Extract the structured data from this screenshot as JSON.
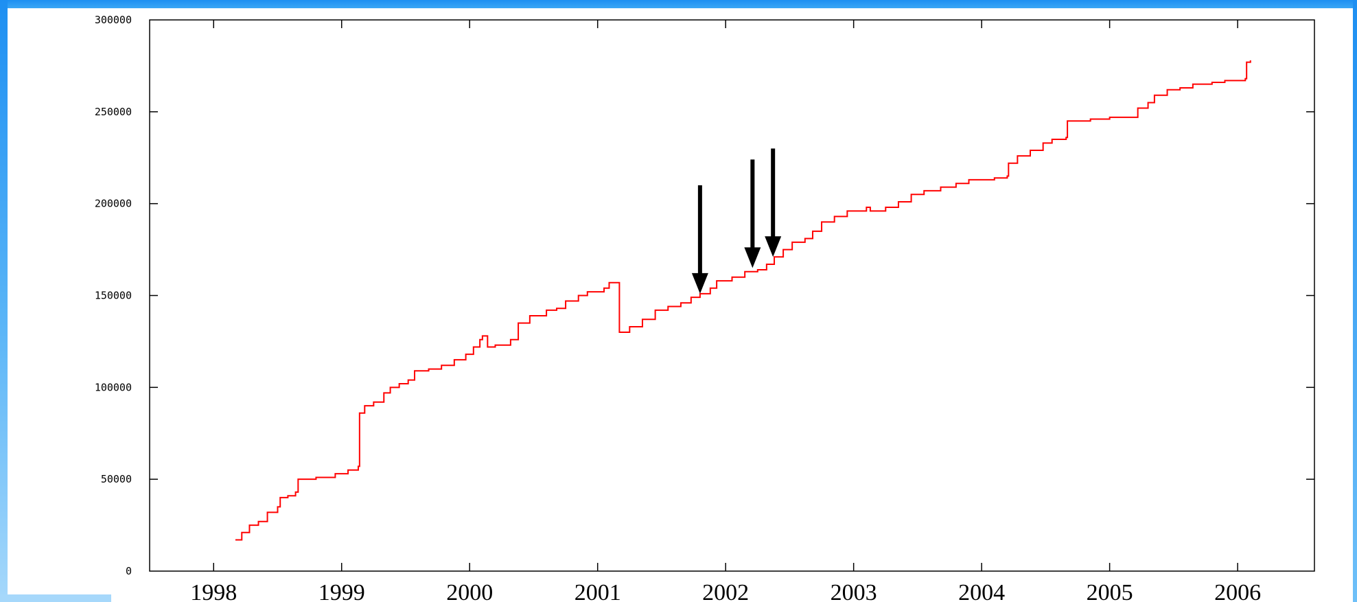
{
  "chart_data": {
    "type": "line",
    "title": "",
    "xlabel": "",
    "ylabel": "",
    "xlim": [
      1997.5,
      2006.6
    ],
    "ylim": [
      0,
      300000
    ],
    "grid": false,
    "x_ticks": [
      1998,
      1999,
      2000,
      2001,
      2002,
      2003,
      2004,
      2005,
      2006
    ],
    "x_tick_labels": [
      "1998",
      "1999",
      "2000",
      "2001",
      "2002",
      "2003",
      "2004",
      "2005",
      "2006"
    ],
    "y_ticks": [
      0,
      50000,
      100000,
      150000,
      200000,
      250000,
      300000
    ],
    "y_tick_labels": [
      "0",
      "50000",
      "100000",
      "150000",
      "200000",
      "250000",
      "300000"
    ],
    "series": [
      {
        "color": "#ff0000",
        "step": true,
        "points": [
          [
            1998.17,
            17000
          ],
          [
            1998.22,
            21000
          ],
          [
            1998.28,
            25000
          ],
          [
            1998.35,
            27000
          ],
          [
            1998.42,
            32000
          ],
          [
            1998.5,
            35000
          ],
          [
            1998.52,
            40000
          ],
          [
            1998.58,
            41000
          ],
          [
            1998.64,
            43000
          ],
          [
            1998.66,
            50000
          ],
          [
            1998.8,
            51000
          ],
          [
            1998.95,
            53000
          ],
          [
            1999.05,
            55000
          ],
          [
            1999.13,
            57000
          ],
          [
            1999.14,
            86000
          ],
          [
            1999.18,
            90000
          ],
          [
            1999.25,
            92000
          ],
          [
            1999.33,
            97000
          ],
          [
            1999.38,
            100000
          ],
          [
            1999.45,
            102000
          ],
          [
            1999.52,
            104000
          ],
          [
            1999.57,
            109000
          ],
          [
            1999.68,
            110000
          ],
          [
            1999.78,
            112000
          ],
          [
            1999.88,
            115000
          ],
          [
            1999.97,
            118000
          ],
          [
            2000.03,
            122000
          ],
          [
            2000.08,
            126000
          ],
          [
            2000.1,
            128000
          ],
          [
            2000.14,
            122000
          ],
          [
            2000.2,
            123000
          ],
          [
            2000.32,
            126000
          ],
          [
            2000.38,
            135000
          ],
          [
            2000.47,
            139000
          ],
          [
            2000.6,
            142000
          ],
          [
            2000.68,
            143000
          ],
          [
            2000.75,
            147000
          ],
          [
            2000.85,
            150000
          ],
          [
            2000.92,
            152000
          ],
          [
            2001.05,
            154000
          ],
          [
            2001.09,
            157000
          ],
          [
            2001.16,
            157000
          ],
          [
            2001.17,
            130000
          ],
          [
            2001.25,
            133000
          ],
          [
            2001.35,
            137000
          ],
          [
            2001.45,
            142000
          ],
          [
            2001.55,
            144000
          ],
          [
            2001.65,
            146000
          ],
          [
            2001.73,
            149000
          ],
          [
            2001.8,
            151000
          ],
          [
            2001.88,
            154000
          ],
          [
            2001.93,
            158000
          ],
          [
            2002.05,
            160000
          ],
          [
            2002.15,
            163000
          ],
          [
            2002.25,
            164000
          ],
          [
            2002.32,
            167000
          ],
          [
            2002.38,
            171000
          ],
          [
            2002.45,
            175000
          ],
          [
            2002.52,
            179000
          ],
          [
            2002.62,
            181000
          ],
          [
            2002.68,
            185000
          ],
          [
            2002.75,
            190000
          ],
          [
            2002.85,
            193000
          ],
          [
            2002.95,
            196000
          ],
          [
            2003.1,
            198000
          ],
          [
            2003.13,
            196000
          ],
          [
            2003.25,
            198000
          ],
          [
            2003.35,
            201000
          ],
          [
            2003.45,
            205000
          ],
          [
            2003.55,
            207000
          ],
          [
            2003.68,
            209000
          ],
          [
            2003.8,
            211000
          ],
          [
            2003.9,
            213000
          ],
          [
            2004.1,
            214000
          ],
          [
            2004.2,
            215000
          ],
          [
            2004.21,
            222000
          ],
          [
            2004.28,
            226000
          ],
          [
            2004.38,
            229000
          ],
          [
            2004.48,
            233000
          ],
          [
            2004.55,
            235000
          ],
          [
            2004.66,
            236000
          ],
          [
            2004.67,
            245000
          ],
          [
            2004.85,
            246000
          ],
          [
            2005.0,
            247000
          ],
          [
            2005.21,
            247000
          ],
          [
            2005.22,
            252000
          ],
          [
            2005.3,
            255000
          ],
          [
            2005.35,
            259000
          ],
          [
            2005.45,
            262000
          ],
          [
            2005.55,
            263000
          ],
          [
            2005.65,
            265000
          ],
          [
            2005.8,
            266000
          ],
          [
            2005.9,
            267000
          ],
          [
            2006.06,
            268000
          ],
          [
            2006.07,
            277000
          ],
          [
            2006.1,
            278000
          ]
        ]
      }
    ],
    "annotations": [
      {
        "type": "arrow",
        "direction": "down",
        "x": 2001.8,
        "y": 151000,
        "y_from": 210000
      },
      {
        "type": "arrow",
        "direction": "down",
        "x": 2002.21,
        "y": 165000,
        "y_from": 224000
      },
      {
        "type": "arrow",
        "direction": "down",
        "x": 2002.37,
        "y": 171000,
        "y_from": 230000
      }
    ]
  }
}
